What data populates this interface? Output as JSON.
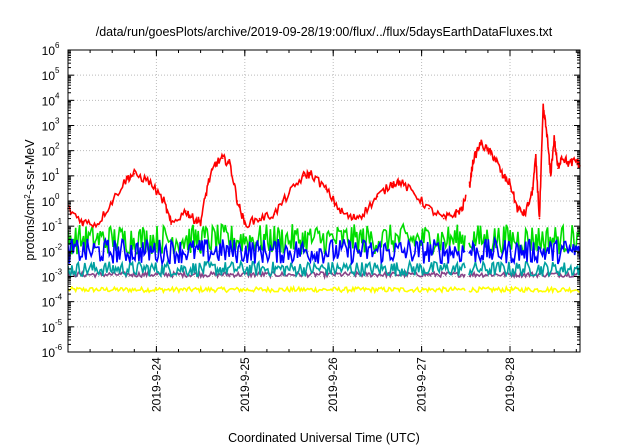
{
  "chart_data": {
    "type": "line",
    "title": "/data/run/goesPlots/archive/2019-09-28/19:00/flux/../flux/5daysEarthDataFluxes.txt",
    "xlabel": "Coordinated Universal Time (UTC)",
    "ylabel": "protons/cm²-s-sr-MeV",
    "ylabel_parts": {
      "before": "protons/cm",
      "sup": "2",
      "after": "-s-sr-MeV"
    },
    "yscale": "log",
    "ylim": [
      1e-06,
      1000000.0
    ],
    "y_tick_exponents": [
      -6,
      -5,
      -4,
      -3,
      -2,
      -1,
      0,
      1,
      2,
      3,
      4,
      5,
      6
    ],
    "y_tick_base": "10",
    "xlim_days": [
      "2019-09-23 00:00",
      "2019-09-28 19:00"
    ],
    "x_ticks": [
      "2019-9-24",
      "2019-9-25",
      "2019-9-26",
      "2019-9-27",
      "2019-9-28"
    ],
    "grid": true,
    "data_gap": [
      "2019-09-27 12:00",
      "2019-09-27 12:50"
    ],
    "series": [
      {
        "color": "#ff0000",
        "points": [
          [
            "2019-09-23 00:00",
            0.5
          ],
          [
            "2019-09-23 04:00",
            0.15
          ],
          [
            "2019-09-23 08:00",
            0.12
          ],
          [
            "2019-09-23 12:00",
            1.0
          ],
          [
            "2019-09-23 16:00",
            8.0
          ],
          [
            "2019-09-23 18:00",
            12.0
          ],
          [
            "2019-09-23 22:00",
            6.0
          ],
          [
            "2019-09-24 02:00",
            1.0
          ],
          [
            "2019-09-24 04:00",
            0.12
          ],
          [
            "2019-09-24 08:00",
            0.4
          ],
          [
            "2019-09-24 10:00",
            0.2
          ],
          [
            "2019-09-24 12:00",
            0.15
          ],
          [
            "2019-09-24 14:00",
            5.0
          ],
          [
            "2019-09-24 16:00",
            30.0
          ],
          [
            "2019-09-24 18:00",
            50.0
          ],
          [
            "2019-09-24 20:00",
            30.0
          ],
          [
            "2019-09-24 22:00",
            1.0
          ],
          [
            "2019-09-25 00:00",
            0.12
          ],
          [
            "2019-09-25 04:00",
            0.2
          ],
          [
            "2019-09-25 08:00",
            0.3
          ],
          [
            "2019-09-25 12:00",
            2.0
          ],
          [
            "2019-09-25 16:00",
            10.0
          ],
          [
            "2019-09-25 18:00",
            12.0
          ],
          [
            "2019-09-25 22:00",
            3.0
          ],
          [
            "2019-09-26 02:00",
            0.4
          ],
          [
            "2019-09-26 05:00",
            0.2
          ],
          [
            "2019-09-26 08:00",
            0.3
          ],
          [
            "2019-09-26 12:00",
            1.5
          ],
          [
            "2019-09-26 16:00",
            5.0
          ],
          [
            "2019-09-26 18:00",
            6.0
          ],
          [
            "2019-09-26 22:00",
            2.0
          ],
          [
            "2019-09-27 02:00",
            0.5
          ],
          [
            "2019-09-27 06:00",
            0.2
          ],
          [
            "2019-09-27 09:00",
            0.3
          ],
          [
            "2019-09-27 11:00",
            0.5
          ],
          [
            "2019-09-27 13:00",
            4.0
          ],
          [
            "2019-09-27 14:00",
            40.0
          ],
          [
            "2019-09-27 16:00",
            200.0
          ],
          [
            "2019-09-27 18:00",
            100.0
          ],
          [
            "2019-09-27 20:00",
            50.0
          ],
          [
            "2019-09-27 22:00",
            10.0
          ],
          [
            "2019-09-28 00:00",
            5.0
          ],
          [
            "2019-09-28 02:00",
            0.5
          ],
          [
            "2019-09-28 04:00",
            0.3
          ],
          [
            "2019-09-28 06:00",
            2.0
          ],
          [
            "2019-09-28 07:00",
            50.0
          ],
          [
            "2019-09-28 08:00",
            0.2
          ],
          [
            "2019-09-28 09:00",
            5000.0
          ],
          [
            "2019-09-28 10:00",
            500.0
          ],
          [
            "2019-09-28 11:00",
            10.0
          ],
          [
            "2019-09-28 12:00",
            300.0
          ],
          [
            "2019-09-28 13:00",
            20.0
          ],
          [
            "2019-09-28 14:00",
            60.0
          ],
          [
            "2019-09-28 16:00",
            30.0
          ],
          [
            "2019-09-28 18:00",
            40.0
          ],
          [
            "2019-09-28 19:00",
            25.0
          ]
        ]
      },
      {
        "color": "#00dd00",
        "level": 0.03,
        "spread": 0.6
      },
      {
        "color": "#0000ff",
        "level": 0.01,
        "spread": 0.5
      },
      {
        "color": "#00a0a0",
        "level": 0.002,
        "spread": 0.3
      },
      {
        "color": "#884488",
        "level": 0.0012,
        "spread": 0.1
      },
      {
        "color": "#ffff00",
        "level": 0.0003,
        "spread": 0.1
      }
    ]
  }
}
